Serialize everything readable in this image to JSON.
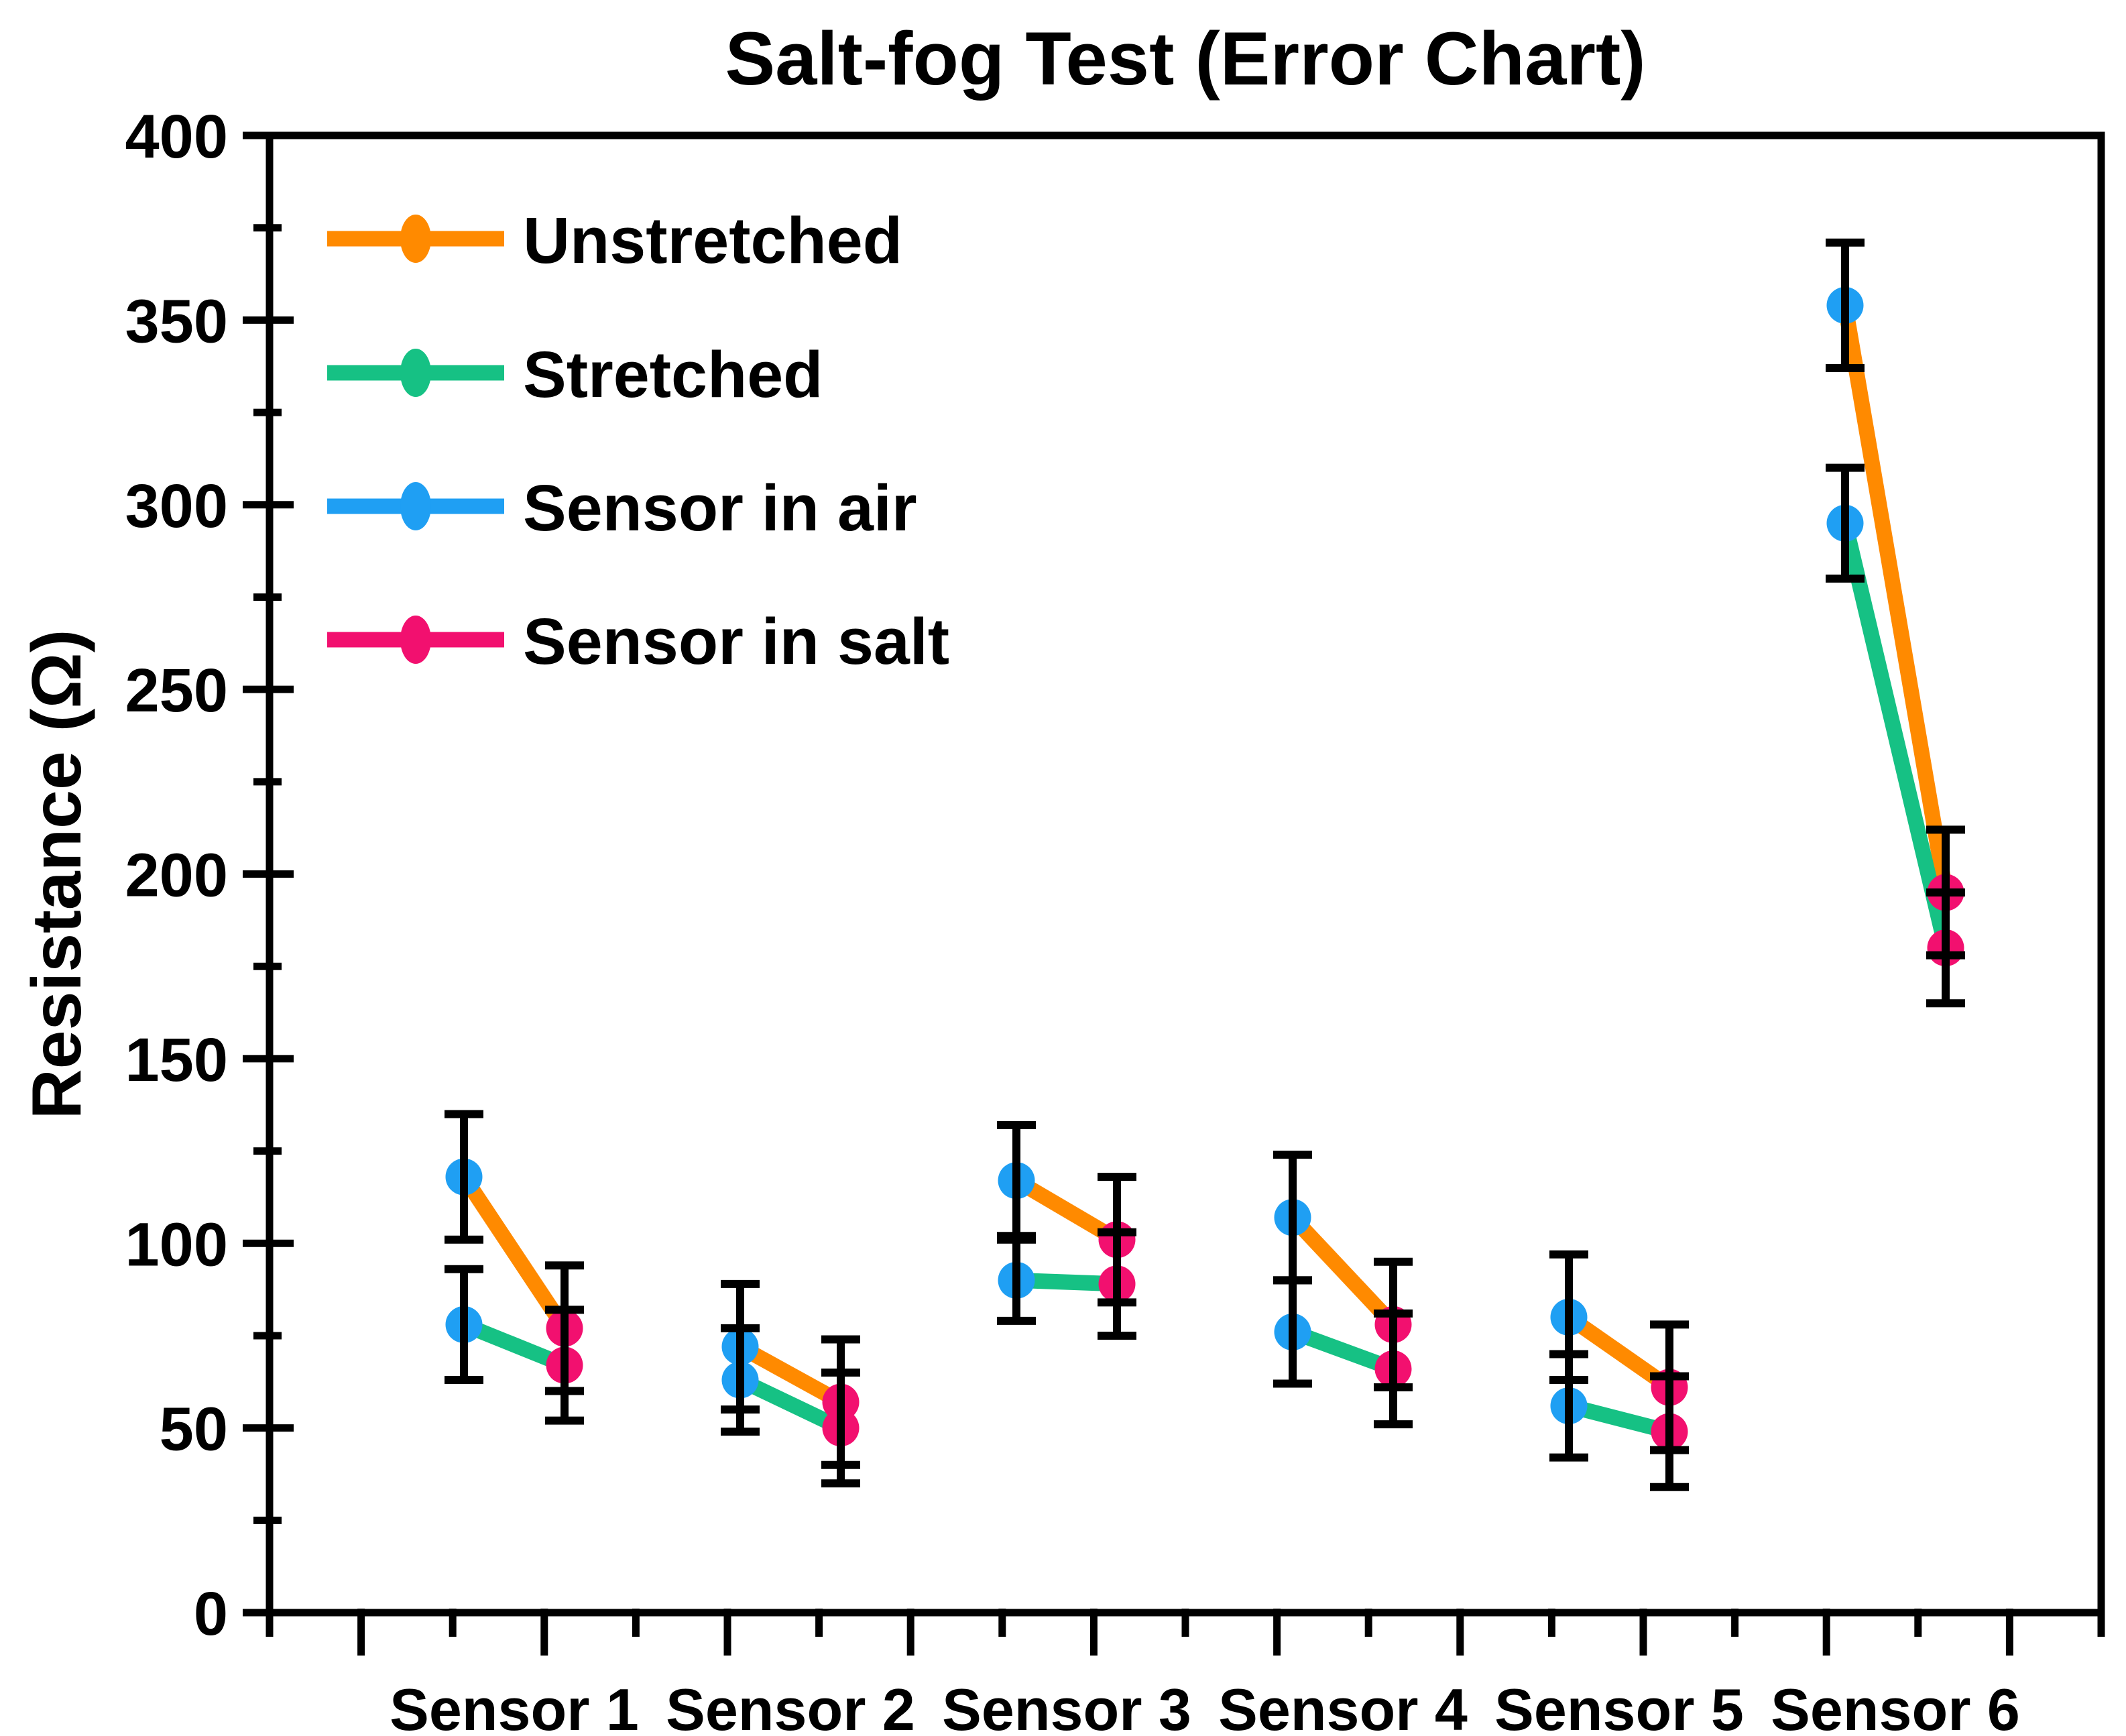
{
  "figure": {
    "background": "#FFFFFF",
    "frame_color": "#000000"
  },
  "chart_data": {
    "type": "line",
    "title": "Salt-fog Test (Error Chart)",
    "ylabel": "Resistance (Ω)",
    "xlabel": "",
    "ylim": [
      0,
      400
    ],
    "ytick_major_step": 50,
    "ytick_minor_step": 25,
    "grid": false,
    "legend_position": "top-left",
    "categories": [
      "Sensor 1",
      "Sensor 2",
      "Sensor 3",
      "Sensor 4",
      "Sensor 5",
      "Sensor 6"
    ],
    "x_conditions": [
      "Sensor in air",
      "Sensor in salt"
    ],
    "marker_colors": {
      "air": "#1F9FF3",
      "salt": "#F2106F"
    },
    "series": [
      {
        "name": "Unstretched",
        "line_color": "#FF8A00",
        "air_values": [
          118,
          72,
          117,
          107,
          80,
          354
        ],
        "air_errors": [
          17,
          17,
          15,
          17,
          17,
          17
        ],
        "salt_values": [
          77,
          57,
          101,
          78,
          61,
          195
        ],
        "salt_errors": [
          17,
          17,
          17,
          17,
          17,
          17
        ]
      },
      {
        "name": "Stretched",
        "line_color": "#16C184",
        "air_values": [
          78,
          63,
          90,
          76,
          56,
          295
        ],
        "air_errors": [
          15,
          14,
          11,
          14,
          14,
          15
        ],
        "salt_values": [
          67,
          50,
          89,
          66,
          49,
          180
        ],
        "salt_errors": [
          15,
          15,
          14,
          15,
          15,
          15
        ]
      }
    ],
    "legend": [
      {
        "label": "Unstretched",
        "color": "#FF8A00"
      },
      {
        "label": "Stretched",
        "color": "#16C184"
      },
      {
        "label": "Sensor in air",
        "color": "#1F9FF3"
      },
      {
        "label": "Sensor in salt",
        "color": "#F2106F"
      }
    ]
  }
}
